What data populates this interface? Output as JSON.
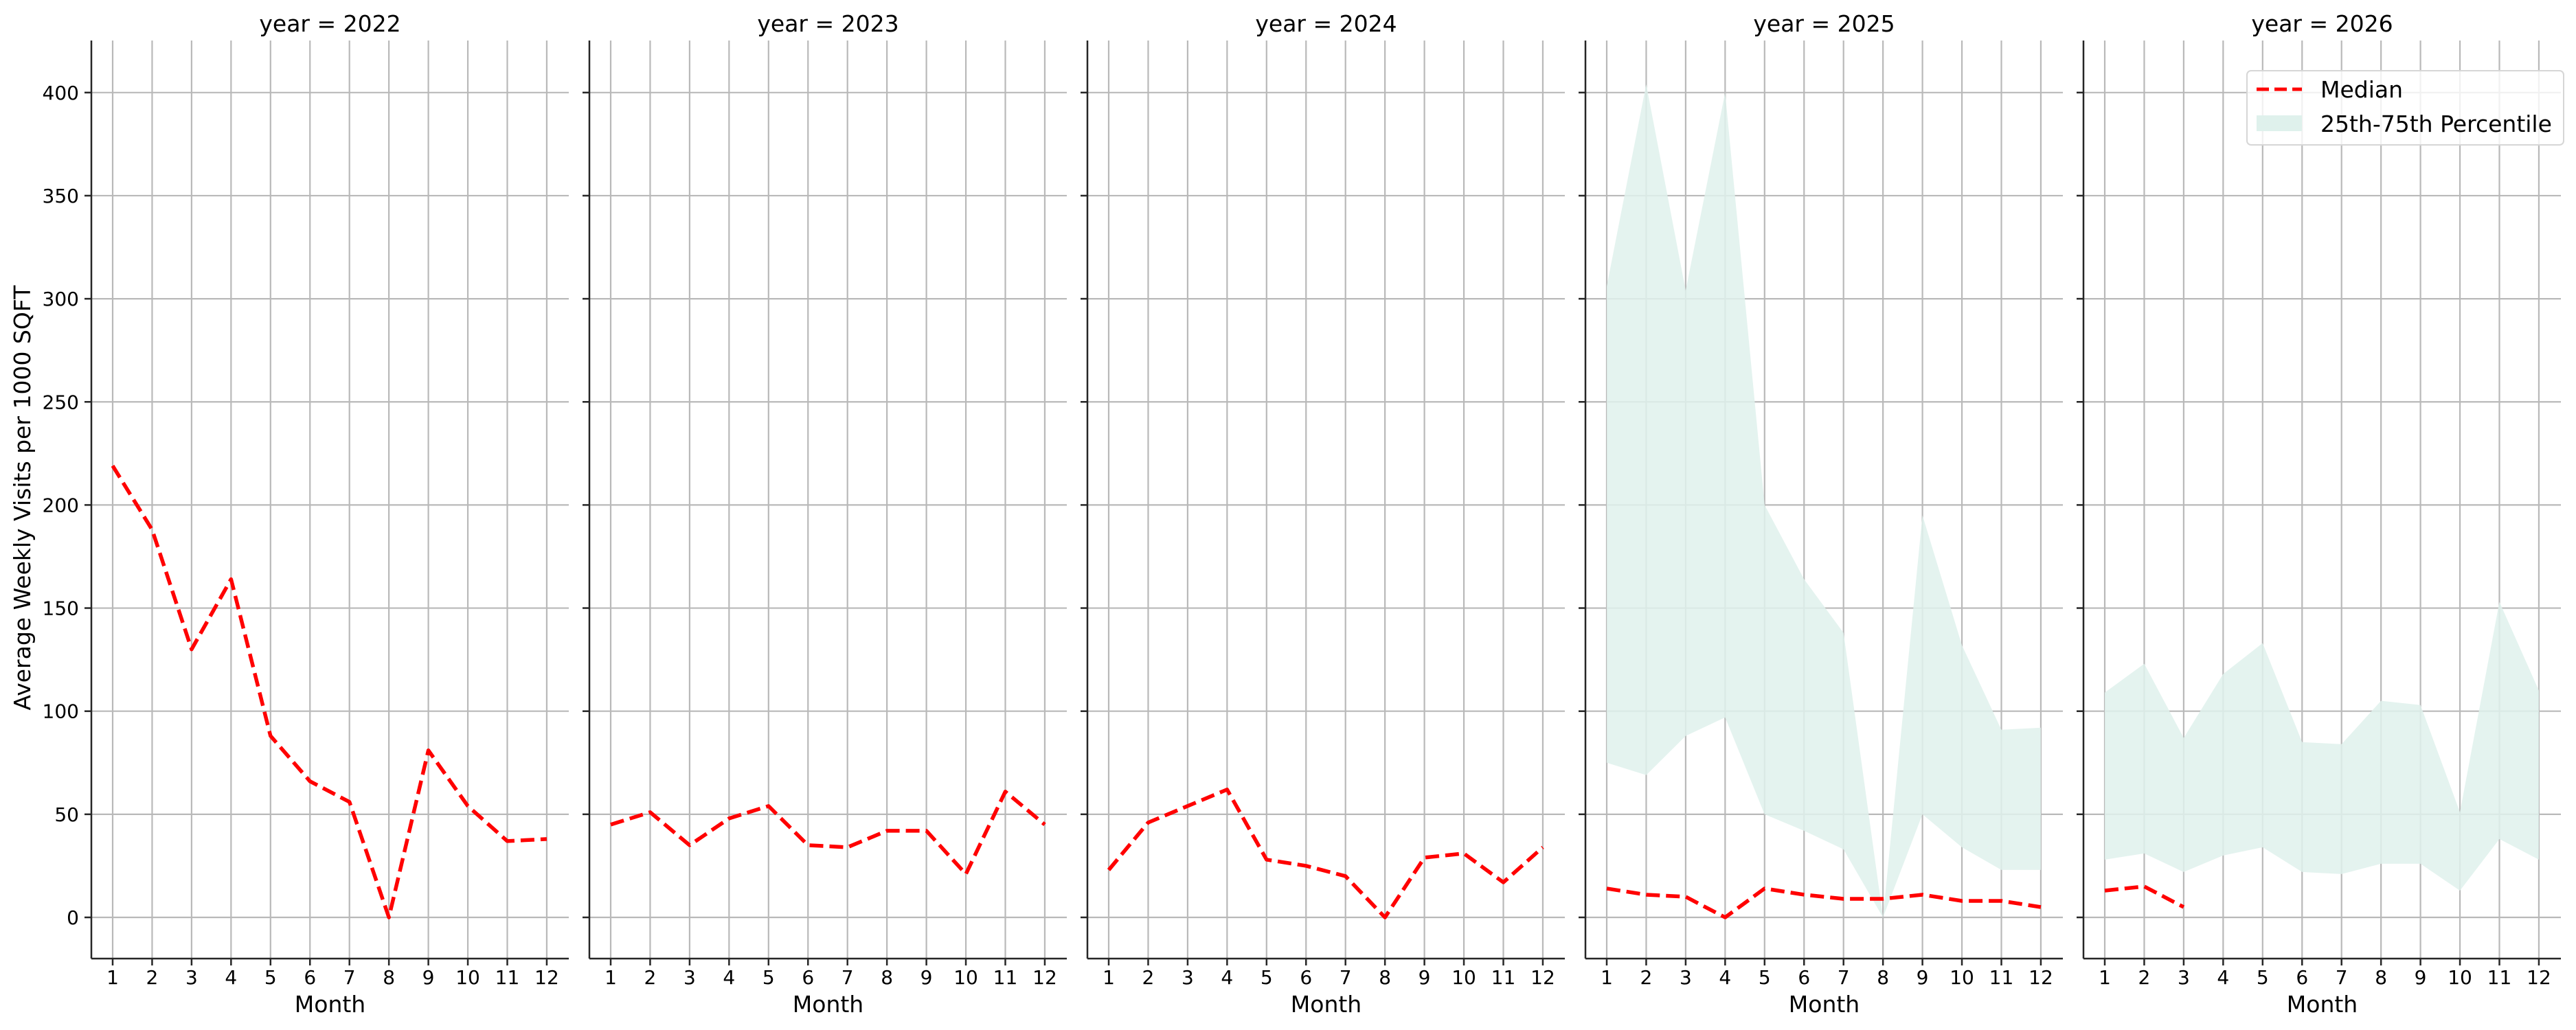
{
  "chart_data": {
    "type": "line",
    "layout": "faceted",
    "facet_variable": "year",
    "ylabel": "Average Weekly Visits per 1000 SQFT",
    "xlabel": "Month",
    "x": [
      1,
      2,
      3,
      4,
      5,
      6,
      7,
      8,
      9,
      10,
      11,
      12
    ],
    "x_tick_labels": [
      "1",
      "2",
      "3",
      "4",
      "5",
      "6",
      "7",
      "8",
      "9",
      "10",
      "11",
      "12"
    ],
    "ylim": [
      -20,
      425
    ],
    "y_ticks": [
      0,
      50,
      100,
      150,
      200,
      250,
      300,
      350,
      400
    ],
    "y_tick_labels": [
      "0",
      "50",
      "100",
      "150",
      "200",
      "250",
      "300",
      "350",
      "400"
    ],
    "grid": true,
    "sharey": true,
    "legend": {
      "position": "upper right of last panel",
      "entries": [
        {
          "label": "Median",
          "style": "dashed-line",
          "color": "#ff0000"
        },
        {
          "label": "25th-75th Percentile",
          "style": "filled-band",
          "color": "#dff1ec"
        }
      ]
    },
    "colors": {
      "median": "#ff0000",
      "band": "#dff1ec",
      "grid": "#b9b9b9",
      "axis": "#262626"
    },
    "panels": [
      {
        "title": "year = 2022",
        "median": [
          219,
          188,
          130,
          164,
          88,
          66,
          56,
          0,
          81,
          54,
          37,
          38
        ],
        "p25": null,
        "p75": null
      },
      {
        "title": "year = 2023",
        "median": [
          45,
          51,
          35,
          48,
          54,
          35,
          34,
          42,
          42,
          21,
          61,
          45
        ],
        "p25": null,
        "p75": null
      },
      {
        "title": "year = 2024",
        "median": [
          23,
          46,
          54,
          62,
          28,
          25,
          20,
          0,
          29,
          31,
          17,
          34
        ],
        "p25": null,
        "p75": null
      },
      {
        "title": "year = 2025",
        "median": [
          14,
          11,
          10,
          0,
          14,
          11,
          9,
          9,
          11,
          8,
          8,
          5
        ],
        "p25": [
          75,
          69,
          88,
          97,
          50,
          42,
          33,
          0,
          50,
          34,
          23,
          23
        ],
        "p75": [
          306,
          404,
          304,
          400,
          200,
          164,
          138,
          0,
          195,
          132,
          91,
          92
        ]
      },
      {
        "title": "year = 2026",
        "median": [
          13,
          15,
          5,
          null,
          null,
          null,
          null,
          null,
          null,
          null,
          null,
          null
        ],
        "p25": [
          28,
          31,
          22,
          30,
          34,
          22,
          21,
          26,
          26,
          13,
          38,
          28
        ],
        "p75": [
          109,
          123,
          87,
          118,
          133,
          85,
          84,
          105,
          103,
          51,
          153,
          110
        ]
      }
    ]
  }
}
